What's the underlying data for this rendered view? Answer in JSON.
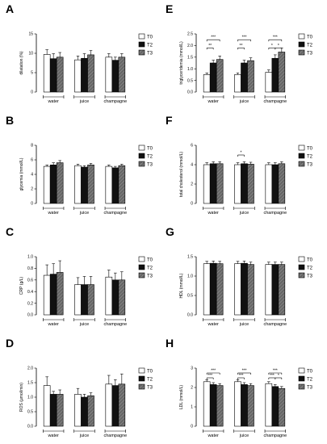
{
  "colors": {
    "T0": "#ffffff",
    "T2": "#111111",
    "T3": "#666666",
    "stroke": "#000000"
  },
  "legend": [
    "T0",
    "T2",
    "T3"
  ],
  "chart_data": [
    {
      "letter": "A",
      "type": "bar",
      "ylabel": "dilatation (%)",
      "ylim": [
        0,
        15
      ],
      "ticks": [
        "0",
        "5",
        "10",
        "15"
      ],
      "categories": [
        "water",
        "juice",
        "champagne"
      ],
      "series": [
        {
          "name": "T0",
          "values": [
            9.7,
            8.3,
            9.0
          ],
          "err": [
            1.2,
            1.0,
            0.9
          ]
        },
        {
          "name": "T2",
          "values": [
            8.6,
            8.7,
            8.2
          ],
          "err": [
            1.3,
            1.2,
            0.8
          ]
        },
        {
          "name": "T3",
          "values": [
            9.0,
            9.6,
            9.0
          ],
          "err": [
            1.2,
            1.1,
            0.9
          ]
        }
      ],
      "stars": []
    },
    {
      "letter": "E",
      "type": "bar",
      "ylabel": "triglyceridemia (mmol/L)",
      "ylim": [
        0,
        2.5
      ],
      "ticks": [
        "0.0",
        "0.5",
        "1.0",
        "1.5",
        "2.0",
        "2.5"
      ],
      "categories": [
        "water",
        "juice",
        "champagne"
      ],
      "series": [
        {
          "name": "T0",
          "values": [
            0.75,
            0.75,
            0.85
          ],
          "err": [
            0.07,
            0.07,
            0.1
          ]
        },
        {
          "name": "T2",
          "values": [
            1.25,
            1.25,
            1.45
          ],
          "err": [
            0.12,
            0.12,
            0.15
          ]
        },
        {
          "name": "T3",
          "values": [
            1.4,
            1.35,
            1.72
          ],
          "err": [
            0.15,
            0.12,
            0.18
          ]
        }
      ],
      "stars": [
        {
          "g": 0,
          "a": 0,
          "b": 2,
          "y": 2.25,
          "text": "***"
        },
        {
          "g": 0,
          "a": 0,
          "b": 1,
          "y": 1.9,
          "text": "**"
        },
        {
          "g": 1,
          "a": 0,
          "b": 2,
          "y": 2.25,
          "text": "***"
        },
        {
          "g": 1,
          "a": 0,
          "b": 1,
          "y": 1.9,
          "text": "**"
        },
        {
          "g": 2,
          "a": 0,
          "b": 2,
          "y": 2.25,
          "text": "***"
        },
        {
          "g": 2,
          "a": 0,
          "b": 1,
          "y": 1.9,
          "text": "*"
        },
        {
          "g": 2,
          "a": 1,
          "b": 2,
          "y": 1.9,
          "text": "*"
        }
      ]
    },
    {
      "letter": "B",
      "type": "bar",
      "ylabel": "glycemia (mmol/L)",
      "ylim": [
        0,
        8
      ],
      "ticks": [
        "0",
        "2",
        "4",
        "6",
        "8"
      ],
      "categories": [
        "water",
        "juice",
        "champagne"
      ],
      "series": [
        {
          "name": "T0",
          "values": [
            5.1,
            5.2,
            5.1
          ],
          "err": [
            0.2,
            0.2,
            0.2
          ]
        },
        {
          "name": "T2",
          "values": [
            5.3,
            5.0,
            4.9
          ],
          "err": [
            0.3,
            0.2,
            0.2
          ]
        },
        {
          "name": "T3",
          "values": [
            5.6,
            5.3,
            5.2
          ],
          "err": [
            0.3,
            0.2,
            0.2
          ]
        }
      ],
      "stars": []
    },
    {
      "letter": "F",
      "type": "bar",
      "ylabel": "total cholesterol (mmol/L)",
      "ylim": [
        0,
        6
      ],
      "ticks": [
        "0",
        "2",
        "4",
        "6"
      ],
      "categories": [
        "water",
        "juice",
        "champagne"
      ],
      "series": [
        {
          "name": "T0",
          "values": [
            4.0,
            4.0,
            4.0
          ],
          "err": [
            0.2,
            0.2,
            0.2
          ]
        },
        {
          "name": "T2",
          "values": [
            4.1,
            4.1,
            4.0
          ],
          "err": [
            0.2,
            0.2,
            0.2
          ]
        },
        {
          "name": "T3",
          "values": [
            4.1,
            4.05,
            4.1
          ],
          "err": [
            0.2,
            0.2,
            0.2
          ]
        }
      ],
      "stars": [
        {
          "g": 1,
          "a": 0,
          "b": 1,
          "y": 5.0,
          "text": "*"
        }
      ]
    },
    {
      "letter": "C",
      "type": "bar",
      "ylabel": "CRP (g/L)",
      "ylim": [
        0,
        1.0
      ],
      "ticks": [
        "0.0",
        "0.2",
        "0.4",
        "0.6",
        "0.8",
        "1.0"
      ],
      "categories": [
        "water",
        "juice",
        "champagne"
      ],
      "series": [
        {
          "name": "T0",
          "values": [
            0.68,
            0.52,
            0.65
          ],
          "err": [
            0.18,
            0.12,
            0.12
          ]
        },
        {
          "name": "T2",
          "values": [
            0.7,
            0.52,
            0.6
          ],
          "err": [
            0.18,
            0.14,
            0.12
          ]
        },
        {
          "name": "T3",
          "values": [
            0.73,
            0.52,
            0.6
          ],
          "err": [
            0.2,
            0.14,
            0.14
          ]
        }
      ],
      "stars": []
    },
    {
      "letter": "G",
      "type": "bar",
      "ylabel": "HDL (mmol/L)",
      "ylim": [
        0,
        1.5
      ],
      "ticks": [
        "0.0",
        "0.5",
        "1.0",
        "1.5"
      ],
      "categories": [
        "water",
        "juice",
        "champagne"
      ],
      "series": [
        {
          "name": "T0",
          "values": [
            1.32,
            1.32,
            1.3
          ],
          "err": [
            0.06,
            0.06,
            0.06
          ]
        },
        {
          "name": "T2",
          "values": [
            1.33,
            1.33,
            1.3
          ],
          "err": [
            0.06,
            0.06,
            0.06
          ]
        },
        {
          "name": "T3",
          "values": [
            1.32,
            1.3,
            1.3
          ],
          "err": [
            0.06,
            0.06,
            0.06
          ]
        }
      ],
      "stars": []
    },
    {
      "letter": "D",
      "type": "bar",
      "ylabel": "ROS (µmol/min)",
      "ylim": [
        0,
        2.0
      ],
      "ticks": [
        "0.0",
        "0.5",
        "1.0",
        "1.5",
        "2.0"
      ],
      "categories": [
        "water",
        "juice",
        "champagne"
      ],
      "series": [
        {
          "name": "T0",
          "values": [
            1.4,
            1.1,
            1.45
          ],
          "err": [
            0.3,
            0.2,
            0.3
          ]
        },
        {
          "name": "T2",
          "values": [
            1.1,
            1.0,
            1.4
          ],
          "err": [
            0.1,
            0.1,
            0.2
          ]
        },
        {
          "name": "T3",
          "values": [
            1.1,
            1.05,
            1.45
          ],
          "err": [
            0.15,
            0.1,
            0.35
          ]
        }
      ],
      "stars": []
    },
    {
      "letter": "H",
      "type": "bar",
      "ylabel": "LDL (mmol/L)",
      "ylim": [
        0,
        3
      ],
      "ticks": [
        "0",
        "1",
        "2",
        "3"
      ],
      "categories": [
        "water",
        "juice",
        "champagne"
      ],
      "series": [
        {
          "name": "T0",
          "values": [
            2.3,
            2.3,
            2.2
          ],
          "err": [
            0.1,
            0.1,
            0.1
          ]
        },
        {
          "name": "T2",
          "values": [
            2.15,
            2.15,
            2.05
          ],
          "err": [
            0.1,
            0.1,
            0.1
          ]
        },
        {
          "name": "T3",
          "values": [
            2.1,
            2.1,
            1.95
          ],
          "err": [
            0.1,
            0.1,
            0.1
          ]
        }
      ],
      "stars": [
        {
          "g": 0,
          "a": 0,
          "b": 2,
          "y": 2.75,
          "text": "***"
        },
        {
          "g": 0,
          "a": 0,
          "b": 1,
          "y": 2.5,
          "text": "***"
        },
        {
          "g": 1,
          "a": 0,
          "b": 2,
          "y": 2.75,
          "text": "***"
        },
        {
          "g": 1,
          "a": 0,
          "b": 1,
          "y": 2.5,
          "text": "***"
        },
        {
          "g": 2,
          "a": 0,
          "b": 2,
          "y": 2.75,
          "text": "***"
        },
        {
          "g": 2,
          "a": 0,
          "b": 1,
          "y": 2.5,
          "text": "***"
        },
        {
          "g": 2,
          "a": 1,
          "b": 2,
          "y": 2.5,
          "text": "*"
        }
      ]
    }
  ]
}
